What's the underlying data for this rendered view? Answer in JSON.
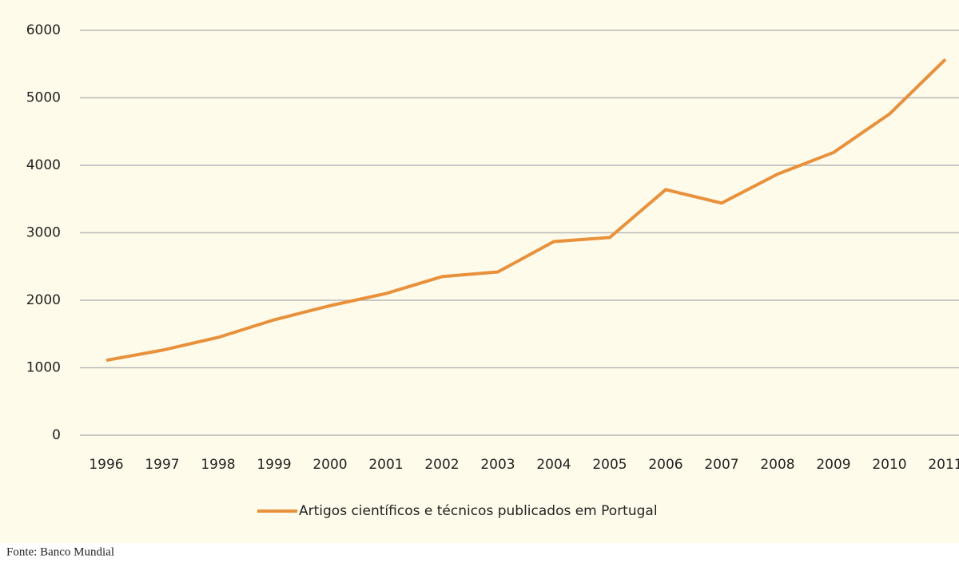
{
  "chart_data": {
    "type": "line",
    "categories": [
      "1996",
      "1997",
      "1998",
      "1999",
      "2000",
      "2001",
      "2002",
      "2003",
      "2004",
      "2005",
      "2006",
      "2007",
      "2008",
      "2009",
      "2010",
      "2011"
    ],
    "series": [
      {
        "name": "Artigos científicos e técnicos publicados em Portugal",
        "color": "#e8913c",
        "values": [
          1110,
          1260,
          1450,
          1710,
          1920,
          2100,
          2350,
          2420,
          2870,
          2930,
          3640,
          3440,
          3870,
          4190,
          4760,
          5570
        ]
      }
    ],
    "ylim": [
      0,
      6000
    ],
    "yticks": [
      0,
      1000,
      2000,
      3000,
      4000,
      5000,
      6000
    ],
    "grid": true,
    "legend": "bottom",
    "source": "Fonte: Banco Mundial"
  }
}
